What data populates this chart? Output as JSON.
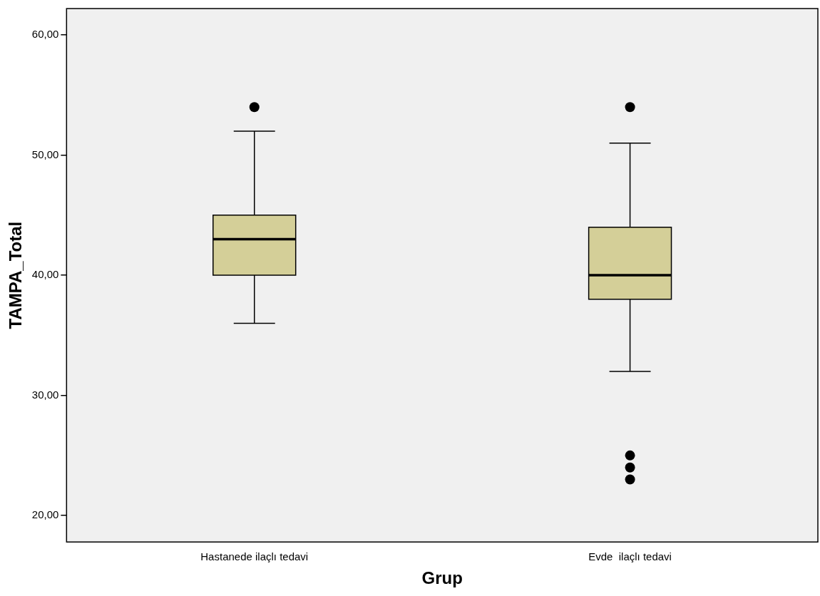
{
  "chart_data": {
    "type": "box",
    "xlabel": "Grup",
    "ylabel": "TAMPA_Total",
    "categories": [
      "Hastanede ilaçlı tedavi",
      "Evde  ilaçlı tedavi"
    ],
    "color": "#d4cf98",
    "boxes": [
      {
        "low": 36,
        "q1": 40,
        "median": 43,
        "q3": 45,
        "high": 52,
        "outliers": [
          54
        ]
      },
      {
        "low": 32,
        "q1": 38,
        "median": 40,
        "q3": 44,
        "high": 51,
        "outliers": [
          54,
          25,
          24,
          23
        ]
      }
    ],
    "ylim": [
      17.8,
      62.2
    ],
    "yticks": [
      {
        "value": 20,
        "label": "20,00"
      },
      {
        "value": 30,
        "label": "30,00"
      },
      {
        "value": 40,
        "label": "40,00"
      },
      {
        "value": 50,
        "label": "50,00"
      },
      {
        "value": 60,
        "label": "60,00"
      }
    ]
  }
}
